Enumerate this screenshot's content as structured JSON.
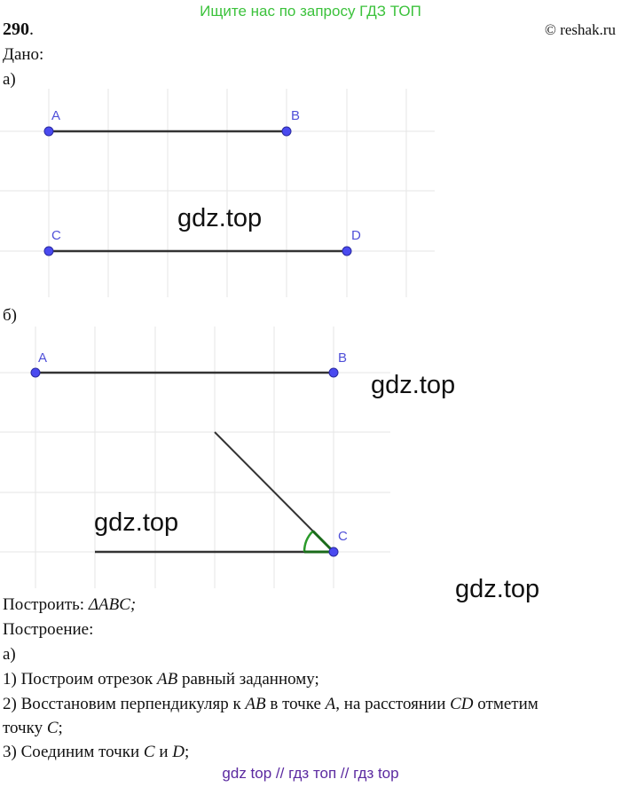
{
  "banner": {
    "text": "Ищите нас по запросу ГДЗ ТОП",
    "color": "#3cc23c"
  },
  "problem_number": "290",
  "copyright": "© reshak.ru",
  "given_label": "Дано:",
  "part_a_label": "а)",
  "part_b_label": "б)",
  "figure_a": {
    "points": {
      "A": "A",
      "B": "B",
      "C": "C",
      "D": "D"
    }
  },
  "figure_b": {
    "points": {
      "A": "A",
      "B": "B",
      "C": "C"
    }
  },
  "watermarks": [
    "gdz.top",
    "gdz.top",
    "gdz.top",
    "gdz.top"
  ],
  "construct": {
    "label": "Построить: ",
    "value": "ΔABC;"
  },
  "construction_label": "Построение:",
  "steps_part": "а)",
  "steps": [
    {
      "pre": "1) Построим отрезок ",
      "m1": "AB",
      "post": " равный заданному;"
    },
    {
      "pre": "2) Восстановим перпендикуляр к ",
      "m1": "AB",
      "mid": " в точке ",
      "m2": "A",
      "mid2": ", на расстоянии ",
      "m3": "CD",
      "post": " отметим"
    },
    {
      "pre": "точку ",
      "m1": "C",
      "post": ";"
    },
    {
      "pre": "3) Соединим точки ",
      "m1": "C",
      "mid": " и ",
      "m2": "D",
      "post": ";"
    }
  ],
  "footer": {
    "text": "gdz top  //  гдз топ  //  гдз top",
    "color": "#5b2aa0"
  },
  "colors": {
    "point": "#4a4af0",
    "segment": "#333333",
    "angle": "#2a9a2a",
    "grid": "#e6e6e6"
  }
}
